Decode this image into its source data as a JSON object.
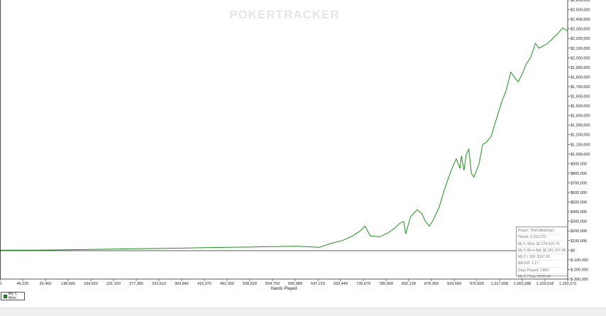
{
  "watermark": "POKERTRACKER",
  "chart_data": {
    "type": "line",
    "xlabel": "Hands Played",
    "ylabel": "",
    "x_ticks": [
      "1",
      "46,230",
      "92,460",
      "138,690",
      "184,920",
      "231,150",
      "277,380",
      "323,610",
      "369,840",
      "416,070",
      "462,300",
      "508,529",
      "554,759",
      "600,989",
      "647,219",
      "693,449",
      "739,679",
      "785,909",
      "832,139",
      "878,369",
      "924,599",
      "970,828",
      "1,017,058",
      "1,063,288",
      "1,109,518",
      "1,150,272"
    ],
    "y_ticks": [
      "$2,600,000",
      "$2,500,000",
      "$2,400,000",
      "$2,300,000",
      "$2,200,000",
      "$2,100,000",
      "$2,000,000",
      "$1,900,000",
      "$1,800,000",
      "$1,700,000",
      "$1,600,000",
      "$1,500,000",
      "$1,400,000",
      "$1,300,000",
      "$1,200,000",
      "$1,100,000",
      "$1,000,000",
      "$900,000",
      "$800,000",
      "$700,000",
      "$600,000",
      "$500,000",
      "$400,000",
      "$300,000",
      "$200,000",
      "$100,000",
      "$0",
      "$-100,000",
      "$-200,000",
      "$-300,000"
    ],
    "xlim": [
      1,
      1150272
    ],
    "ylim": [
      -300000,
      2600000
    ],
    "grid": false,
    "legend_position": "bottom-left",
    "series": [
      {
        "name": "My C Won",
        "color": "#1f8f1f",
        "x": [
          1,
          46230,
          92460,
          138690,
          184920,
          231150,
          277380,
          323610,
          369840,
          416070,
          462300,
          508529,
          554759,
          600989,
          647219,
          670000,
          693449,
          715000,
          730000,
          739679,
          750000,
          770000,
          785909,
          800000,
          810000,
          818000,
          822000,
          832139,
          845000,
          855000,
          862000,
          870000,
          878369,
          890000,
          900000,
          912000,
          920000,
          924599,
          932000,
          935000,
          940000,
          945000,
          950000,
          955000,
          960000,
          965000,
          970828,
          978000,
          985000,
          995000,
          1005000,
          1017058,
          1025000,
          1035000,
          1042000,
          1050000,
          1057000,
          1063288,
          1068000,
          1075000,
          1085000,
          1092000,
          1100000,
          1109518,
          1120000,
          1130000,
          1140000,
          1150272
        ],
        "y": [
          0,
          1000,
          2000,
          4000,
          8000,
          12000,
          15000,
          18000,
          22000,
          26000,
          30000,
          33000,
          38000,
          42000,
          30000,
          70000,
          100000,
          150000,
          200000,
          250000,
          150000,
          140000,
          180000,
          230000,
          280000,
          300000,
          170000,
          350000,
          420000,
          380000,
          300000,
          250000,
          320000,
          450000,
          620000,
          800000,
          900000,
          950000,
          850000,
          980000,
          830000,
          1000000,
          1050000,
          800000,
          760000,
          820000,
          900000,
          1100000,
          1120000,
          1180000,
          1350000,
          1550000,
          1650000,
          1850000,
          1800000,
          1750000,
          1820000,
          1900000,
          1950000,
          2000000,
          2150000,
          2100000,
          2120000,
          2150000,
          2200000,
          2250000,
          2310000,
          2280000
        ]
      }
    ]
  },
  "info_box": {
    "lines": [
      "Player: ThirCoBaOnly1",
      "Hands: 1,150,272",
      "My C Won: $2,276,615.74",
      "My C All-in Adj: $2,261,707.48",
      "My C / 100: $197.92",
      "BB/100: 1.17",
      "Days Played: 2,882",
      "My C / Day: $789.94"
    ]
  },
  "legend": {
    "label": "My C Won"
  }
}
